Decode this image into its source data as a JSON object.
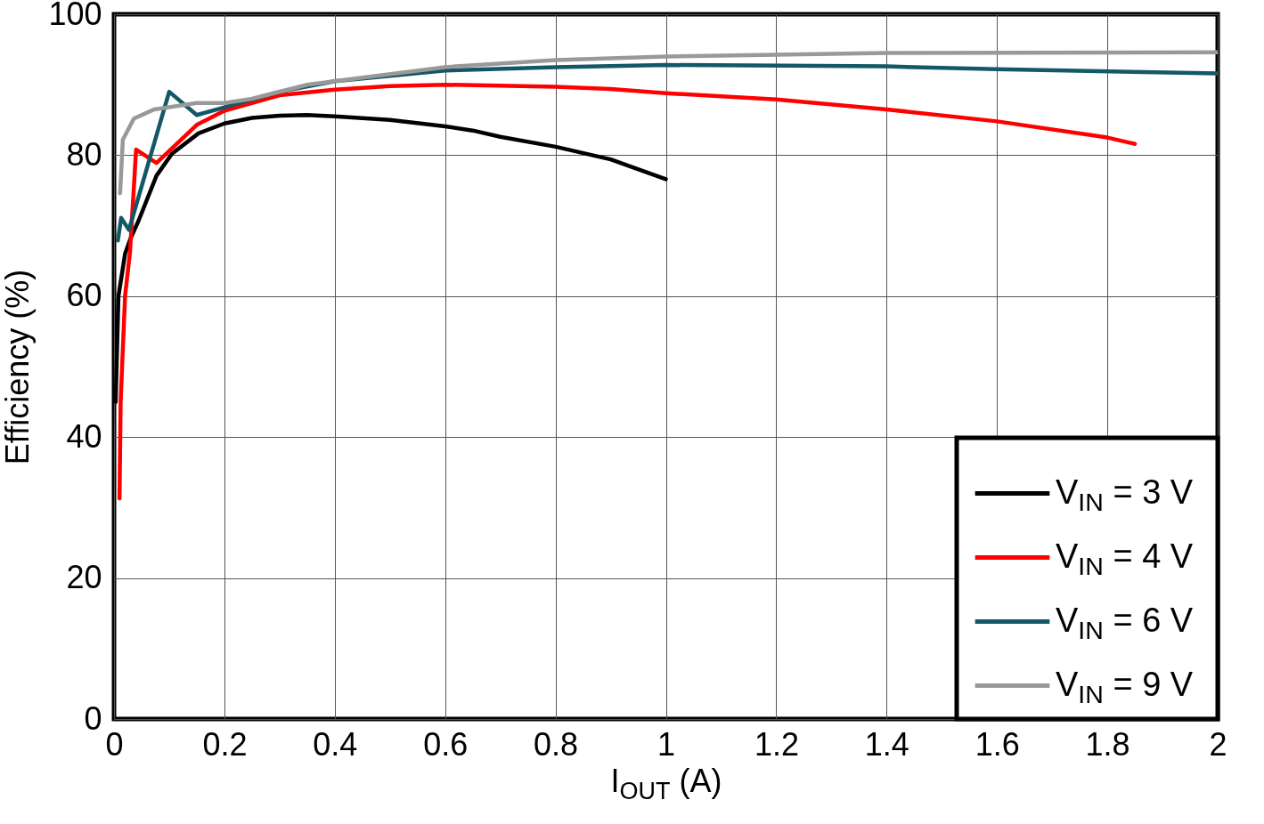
{
  "chart_data": {
    "type": "line",
    "xlabel": "I$_{OUT}$ (A)",
    "ylabel": "Efficiency (%)",
    "xlim": [
      0,
      2
    ],
    "ylim": [
      0,
      100
    ],
    "xticks": [
      0,
      0.2,
      0.4,
      0.6,
      0.8,
      1,
      1.2,
      1.4,
      1.6,
      1.8,
      2
    ],
    "yticks": [
      0,
      20,
      40,
      60,
      80,
      100
    ],
    "grid": true,
    "legend": "bottom right",
    "line_style": "solid",
    "marker": "none",
    "series": [
      {
        "name": "V$_{IN}$ = 3 V",
        "color": "#000000",
        "x": [
          0.003,
          0.008,
          0.02,
          0.029,
          0.045,
          0.077,
          0.105,
          0.153,
          0.2,
          0.25,
          0.3,
          0.35,
          0.4,
          0.5,
          0.6,
          0.65,
          0.7,
          0.8,
          0.9,
          1
        ],
        "values": [
          45,
          60,
          66,
          68,
          70.8,
          77.1,
          80.2,
          83.1,
          84.5,
          85.3,
          85.6,
          85.7,
          85.5,
          85,
          84.1,
          83.5,
          82.6,
          81.2,
          79.4,
          76.6
        ]
      },
      {
        "name": "V$_{IN}$ = 4 V",
        "color": "#ff0000",
        "x": [
          0.01,
          0.012,
          0.02,
          0.029,
          0.04,
          0.077,
          0.15,
          0.2,
          0.3,
          0.4,
          0.5,
          0.6,
          0.8,
          0.9,
          1,
          1.2,
          1.4,
          1.6,
          1.8,
          1.85
        ],
        "values": [
          31.3,
          45,
          60,
          66.3,
          80.8,
          78.9,
          84.3,
          86.3,
          88.5,
          89.3,
          89.8,
          90,
          89.7,
          89.4,
          88.8,
          87.9,
          86.5,
          84.8,
          82.5,
          81.6
        ]
      },
      {
        "name": "V$_{IN}$ = 6 V",
        "color": "#135866",
        "x": [
          0.007,
          0.013,
          0.027,
          0.1,
          0.15,
          0.2,
          0.3,
          0.4,
          0.6,
          0.8,
          1,
          1.4,
          1.6,
          2
        ],
        "values": [
          67.9,
          71.1,
          69.4,
          89,
          85.7,
          86.8,
          89,
          90.5,
          92,
          92.5,
          92.8,
          92.6,
          92.2,
          91.6
        ]
      },
      {
        "name": "V$_{IN}$ = 9 V",
        "color": "#999999",
        "x": [
          0.011,
          0.016,
          0.036,
          0.073,
          0.15,
          0.2,
          0.25,
          0.35,
          0.45,
          0.6,
          0.8,
          1,
          1.4,
          2
        ],
        "values": [
          74.6,
          82.2,
          85.2,
          86.5,
          87.4,
          87.4,
          88,
          90,
          91,
          92.5,
          93.5,
          94,
          94.5,
          94.6
        ]
      }
    ]
  }
}
